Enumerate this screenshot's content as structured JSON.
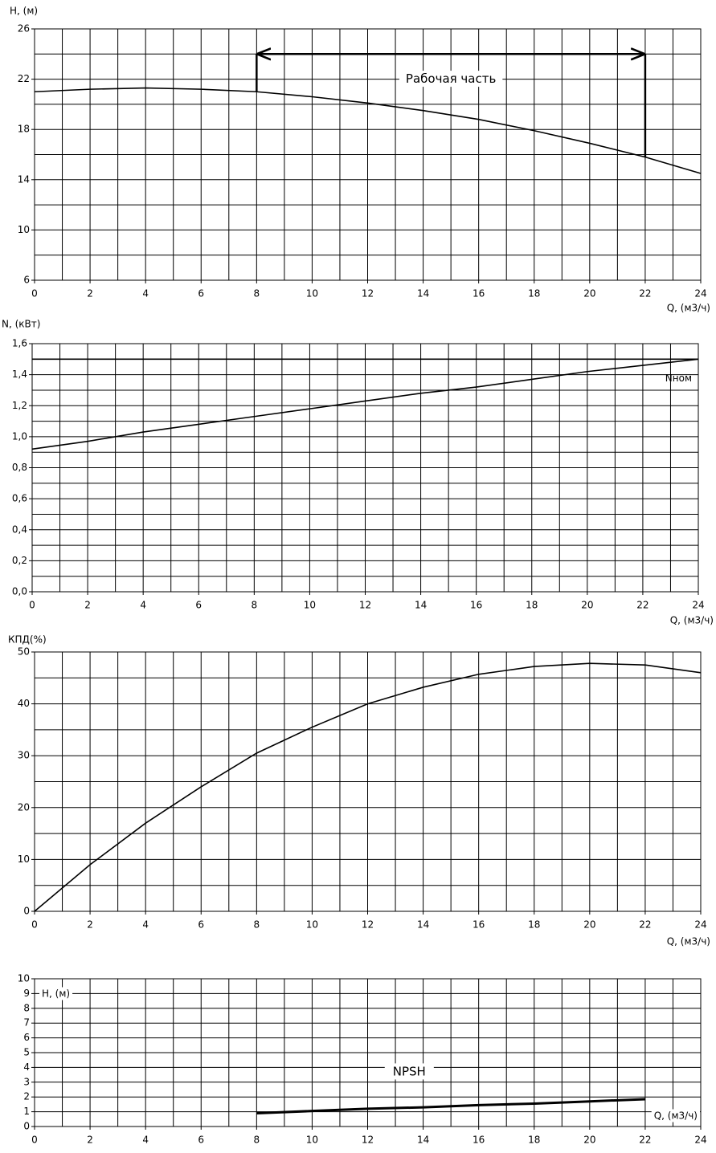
{
  "chart_data": [
    {
      "type": "line",
      "y_label": "H, (м)",
      "x_label": "Q, (м3/ч)",
      "x": [
        0,
        2,
        4,
        6,
        8,
        10,
        12,
        14,
        16,
        18,
        20,
        22,
        24
      ],
      "series": [
        {
          "color": "#000000",
          "values": [
            21.0,
            21.2,
            21.3,
            21.2,
            21.0,
            20.6,
            20.1,
            19.5,
            18.8,
            17.9,
            16.9,
            15.8,
            14.5
          ]
        }
      ],
      "xlim": [
        0,
        24
      ],
      "xticks": [
        0,
        2,
        4,
        6,
        8,
        10,
        12,
        14,
        16,
        18,
        20,
        22,
        24
      ],
      "ylim": [
        6,
        26
      ],
      "yticks": [
        6,
        10,
        14,
        18,
        22,
        26
      ],
      "grid": {
        "x": 1,
        "y": 2
      },
      "annotation": {
        "text": "Рабочая часть",
        "x": [
          8,
          22
        ],
        "y": 24
      }
    },
    {
      "type": "line",
      "y_label": "N, (кВт)",
      "x_label": "Q, (м3/ч)",
      "x": [
        0,
        2,
        4,
        6,
        8,
        10,
        12,
        14,
        16,
        18,
        20,
        22,
        24
      ],
      "series": [
        {
          "color": "#000000",
          "values": [
            0.92,
            0.97,
            1.03,
            1.08,
            1.13,
            1.18,
            1.23,
            1.28,
            1.32,
            1.37,
            1.42,
            1.46,
            1.5
          ]
        }
      ],
      "xlim": [
        0,
        24
      ],
      "xticks": [
        0,
        2,
        4,
        6,
        8,
        10,
        12,
        14,
        16,
        18,
        20,
        22,
        24
      ],
      "ylim": [
        0,
        1.6
      ],
      "yticks": [
        {
          "value": 0,
          "label": "0,0"
        },
        {
          "value": 0.2,
          "label": "0,2"
        },
        {
          "value": 0.4,
          "label": "0,4"
        },
        {
          "value": 0.6,
          "label": "0,6"
        },
        {
          "value": 0.8,
          "label": "0,8"
        },
        {
          "value": 1.0,
          "label": "1,0"
        },
        {
          "value": 1.2,
          "label": "1,2"
        },
        {
          "value": 1.4,
          "label": "1,4"
        },
        {
          "value": 1.6,
          "label": "1,6"
        }
      ],
      "grid": {
        "x": 1,
        "y": 0.1
      },
      "reference": {
        "value": 1.5,
        "label": "Nном"
      }
    },
    {
      "type": "line",
      "y_label": "КПД(%)",
      "x_label": "Q, (м3/ч)",
      "x": [
        0,
        2,
        4,
        6,
        8,
        10,
        12,
        14,
        16,
        18,
        20,
        22,
        24
      ],
      "series": [
        {
          "color": "#000000",
          "values": [
            0,
            9,
            17,
            24,
            30.5,
            35.5,
            40,
            43.2,
            45.7,
            47.2,
            47.8,
            47.5,
            46
          ]
        }
      ],
      "xlim": [
        0,
        24
      ],
      "xticks": [
        0,
        2,
        4,
        6,
        8,
        10,
        12,
        14,
        16,
        18,
        20,
        22,
        24
      ],
      "ylim": [
        0,
        50
      ],
      "yticks": [
        0,
        10,
        20,
        30,
        40,
        50
      ],
      "grid": {
        "x": 1,
        "y": 5
      }
    },
    {
      "type": "line",
      "y_label": "H, (м)",
      "x_label": "Q, (м3/ч)",
      "x": [
        8,
        10,
        12,
        14,
        16,
        18,
        20,
        22
      ],
      "series": [
        {
          "name": "NPSH",
          "color": "#000000",
          "values": [
            0.9,
            1.05,
            1.2,
            1.3,
            1.45,
            1.55,
            1.7,
            1.85
          ]
        }
      ],
      "xlim": [
        0,
        24
      ],
      "xticks": [
        0,
        2,
        4,
        6,
        8,
        10,
        12,
        14,
        16,
        18,
        20,
        22,
        24
      ],
      "ylim": [
        0,
        10
      ],
      "yticks": [
        0,
        1,
        2,
        3,
        4,
        5,
        6,
        7,
        8,
        9,
        10
      ],
      "grid": {
        "x": 1,
        "y": 1
      }
    }
  ]
}
